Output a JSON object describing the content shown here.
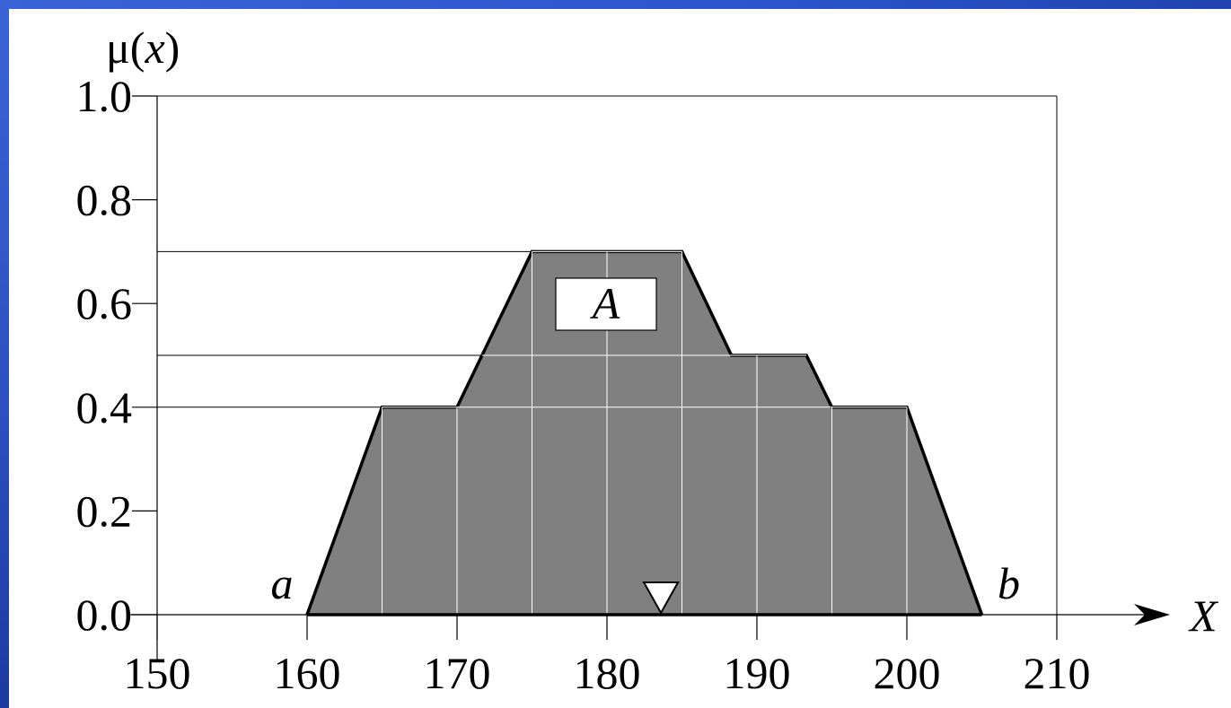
{
  "colors": {
    "background_frame": "#2a4fc4",
    "plot_background": "#ffffff",
    "fill": "#808080",
    "outline": "#000000",
    "grid_inside": "#ffffff"
  },
  "chart_data": {
    "type": "area",
    "ylabel": "μ(x)",
    "xlabel": "X",
    "xlim": [
      150,
      210
    ],
    "ylim": [
      0,
      1.0
    ],
    "x_ticks": [
      150,
      160,
      170,
      180,
      190,
      200,
      210
    ],
    "x_tick_labels": [
      "150",
      "160",
      "170",
      "180",
      "190",
      "200",
      "210"
    ],
    "y_ticks": [
      0,
      0.2,
      0.4,
      0.6,
      0.8,
      1.0
    ],
    "y_tick_labels": [
      "0.0",
      "0.2",
      "0.4",
      "0.6",
      "0.8",
      "1.0"
    ],
    "reference_lines_y": [
      0.4,
      0.5,
      0.7
    ],
    "series": [
      {
        "name": "A",
        "points": [
          {
            "x": 160,
            "y": 0.0
          },
          {
            "x": 165,
            "y": 0.4
          },
          {
            "x": 170,
            "y": 0.4
          },
          {
            "x": 175,
            "y": 0.7
          },
          {
            "x": 185,
            "y": 0.7
          },
          {
            "x": 188.3,
            "y": 0.5
          },
          {
            "x": 193.3,
            "y": 0.5
          },
          {
            "x": 195,
            "y": 0.4
          },
          {
            "x": 200,
            "y": 0.4
          },
          {
            "x": 205,
            "y": 0.0
          }
        ]
      }
    ],
    "vertical_divisions_x": [
      165,
      170,
      175,
      180,
      185,
      190,
      195,
      200
    ],
    "annotations": [
      {
        "text": "a",
        "x": 160
      },
      {
        "text": "b",
        "x": 205
      }
    ],
    "marker": {
      "shape": "down-triangle",
      "x": 183.6,
      "y": 0.0
    },
    "set_label": "A"
  }
}
